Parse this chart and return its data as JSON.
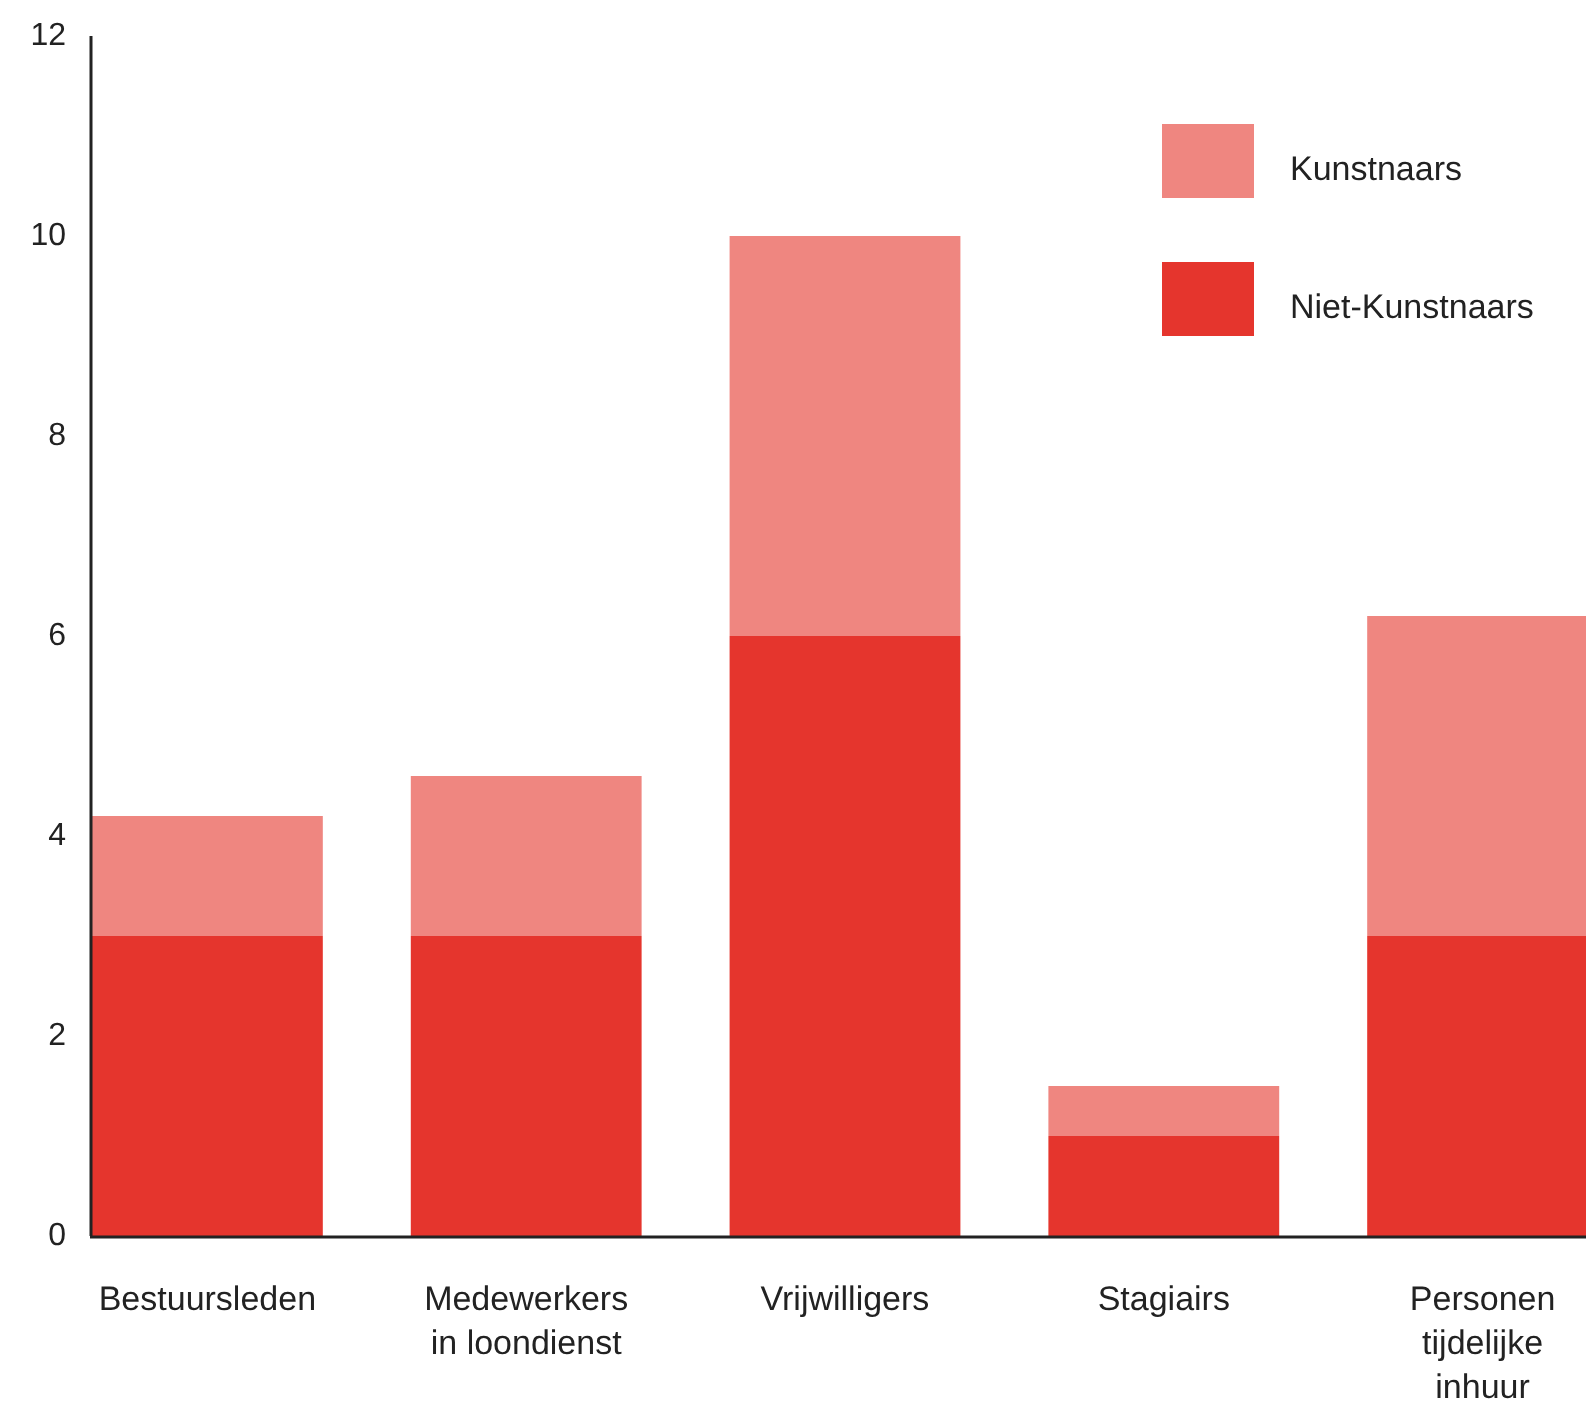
{
  "chart_data": {
    "type": "bar",
    "stacked": true,
    "categories": [
      "Bestuursleden",
      "Medewerkers in loondienst",
      "Vrijwilligers",
      "Stagiairs",
      "Personen tijdelijke inhuur"
    ],
    "series": [
      {
        "name": "Niet-Kunstnaars",
        "color": "#e5352d",
        "values": [
          3,
          3,
          6,
          1,
          3
        ]
      },
      {
        "name": "Kunstnaars",
        "color": "#ef8680",
        "values": [
          1.2,
          1.6,
          4,
          0.5,
          3.2
        ]
      }
    ],
    "ylim": [
      0,
      12
    ],
    "yticks": [
      0,
      2,
      4,
      6,
      8,
      10,
      12
    ],
    "grid": false,
    "legend": "top right"
  }
}
